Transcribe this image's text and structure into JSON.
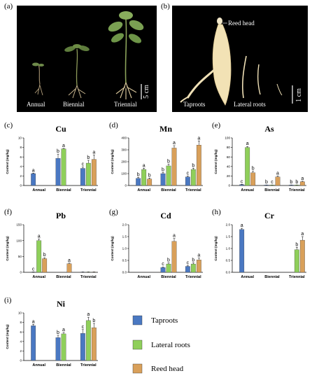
{
  "photo_a": {
    "panel_label": "(a)",
    "labels": {
      "annual": "Annual",
      "biennial": "Biennial",
      "triennial": "Triennial"
    },
    "scale": "5 cm"
  },
  "photo_b": {
    "panel_label": "(b)",
    "labels": {
      "reed_head": "Reed head",
      "taproots": "Taproots",
      "lateral_roots": "Lateral roots"
    },
    "scale": "1 cm"
  },
  "legend": [
    {
      "name": "Taproots",
      "color": "#4a78c2"
    },
    {
      "name": "Lateral roots",
      "color": "#8fcf5a"
    },
    {
      "name": "Reed head",
      "color": "#d9a05a"
    }
  ],
  "y_axis_label": "Content (mg/kg)",
  "chart_data": [
    {
      "panel": "(c)",
      "title": "Cu",
      "type": "bar",
      "categories": [
        "Annual",
        "Biennial",
        "Triennial"
      ],
      "ylim": [
        0,
        10
      ],
      "yticks": [
        0,
        2,
        4,
        6,
        8,
        10
      ],
      "series": [
        {
          "name": "Taproots",
          "values": [
            2.5,
            5.7,
            3.6
          ],
          "errors": [
            0.1,
            0.9,
            0.3
          ],
          "sig": [
            "a",
            "b",
            "c"
          ]
        },
        {
          "name": "Lateral roots",
          "values": [
            0,
            7.7,
            4.7
          ],
          "errors": [
            0,
            0.1,
            0.6
          ],
          "sig": [
            "",
            "a",
            "b"
          ]
        },
        {
          "name": "Reed head",
          "values": [
            0,
            0,
            5.5
          ],
          "errors": [
            0,
            0,
            0.9
          ],
          "sig": [
            "",
            "",
            "a"
          ]
        }
      ]
    },
    {
      "panel": "(d)",
      "title": "Mn",
      "type": "bar",
      "categories": [
        "Annual",
        "Biennial",
        "Triennial"
      ],
      "ylim": [
        0,
        400
      ],
      "yticks": [
        0,
        100,
        200,
        300,
        400
      ],
      "series": [
        {
          "name": "Taproots",
          "values": [
            60,
            100,
            72
          ],
          "errors": [
            8,
            10,
            8
          ],
          "sig": [
            "b",
            "b",
            "c"
          ]
        },
        {
          "name": "Lateral roots",
          "values": [
            135,
            165,
            135
          ],
          "errors": [
            10,
            15,
            10
          ],
          "sig": [
            "a",
            "b",
            "b"
          ]
        },
        {
          "name": "Reed head",
          "values": [
            55,
            315,
            340
          ],
          "errors": [
            8,
            20,
            35
          ],
          "sig": [
            "b",
            "a",
            "a"
          ]
        }
      ]
    },
    {
      "panel": "(e)",
      "title": "As",
      "type": "bar",
      "categories": [
        "Annual",
        "Biennial",
        "Triennial"
      ],
      "ylim": [
        0,
        100
      ],
      "yticks": [
        0,
        20,
        40,
        60,
        80,
        100
      ],
      "series": [
        {
          "name": "Taproots",
          "values": [
            2,
            1,
            1
          ],
          "errors": [
            0.5,
            0.3,
            0.3
          ],
          "sig": [
            "c",
            "b",
            "b"
          ]
        },
        {
          "name": "Lateral roots",
          "values": [
            80,
            1,
            1
          ],
          "errors": [
            2,
            0.3,
            0.3
          ],
          "sig": [
            "a",
            "c",
            "b"
          ]
        },
        {
          "name": "Reed head",
          "values": [
            27,
            18,
            8
          ],
          "errors": [
            3,
            2,
            1
          ],
          "sig": [
            "b",
            "a",
            "a"
          ]
        }
      ]
    },
    {
      "panel": "(f)",
      "title": "Pb",
      "type": "bar",
      "categories": [
        "Annual",
        "Biennial",
        "Triennial"
      ],
      "ylim": [
        0,
        150
      ],
      "yticks": [
        0,
        50,
        100,
        150
      ],
      "series": [
        {
          "name": "Taproots",
          "values": [
            1,
            0,
            1
          ],
          "errors": [
            0.2,
            0,
            0.2
          ],
          "sig": [
            "c",
            "",
            ""
          ]
        },
        {
          "name": "Lateral roots",
          "values": [
            100,
            0,
            1
          ],
          "errors": [
            5,
            0,
            0.2
          ],
          "sig": [
            "a",
            "",
            ""
          ]
        },
        {
          "name": "Reed head",
          "values": [
            43,
            27,
            1
          ],
          "errors": [
            3,
            2,
            0.2
          ],
          "sig": [
            "b",
            "a",
            ""
          ]
        }
      ]
    },
    {
      "panel": "(g)",
      "title": "Cd",
      "type": "bar",
      "categories": [
        "Annual",
        "Biennial",
        "Triennial"
      ],
      "ylim": [
        0,
        2.0
      ],
      "yticks": [
        0.0,
        0.5,
        1.0,
        1.5,
        2.0
      ],
      "series": [
        {
          "name": "Taproots",
          "values": [
            0,
            0.2,
            0.25
          ],
          "errors": [
            0,
            0.03,
            0.03
          ],
          "sig": [
            "",
            "c",
            "c"
          ]
        },
        {
          "name": "Lateral roots",
          "values": [
            0,
            0.35,
            0.35
          ],
          "errors": [
            0,
            0.05,
            0.05
          ],
          "sig": [
            "",
            "b",
            "b"
          ]
        },
        {
          "name": "Reed head",
          "values": [
            0,
            1.3,
            0.52
          ],
          "errors": [
            0,
            0.12,
            0.08
          ],
          "sig": [
            "",
            "a",
            "a"
          ]
        }
      ]
    },
    {
      "panel": "(h)",
      "title": "Cr",
      "type": "bar",
      "categories": [
        "Annual",
        "Biennial",
        "Triennial"
      ],
      "ylim": [
        0,
        2.0
      ],
      "yticks": [
        0.0,
        0.5,
        1.0,
        1.5,
        2.0
      ],
      "series": [
        {
          "name": "Taproots",
          "values": [
            1.8,
            0,
            0
          ],
          "errors": [
            0.05,
            0,
            0
          ],
          "sig": [
            "a",
            "",
            ""
          ]
        },
        {
          "name": "Lateral roots",
          "values": [
            0,
            0,
            0.95
          ],
          "errors": [
            0,
            0,
            0.1
          ],
          "sig": [
            "",
            "",
            "b"
          ]
        },
        {
          "name": "Reed head",
          "values": [
            0,
            0,
            1.35
          ],
          "errors": [
            0,
            0,
            0.15
          ],
          "sig": [
            "",
            "",
            "a"
          ]
        }
      ]
    },
    {
      "panel": "(i)",
      "title": "Ni",
      "type": "bar",
      "categories": [
        "Annual",
        "Biennial",
        "Triennial"
      ],
      "ylim": [
        0,
        10
      ],
      "yticks": [
        0,
        2,
        4,
        6,
        8,
        10
      ],
      "series": [
        {
          "name": "Taproots",
          "values": [
            7.3,
            4.8,
            5.7
          ],
          "errors": [
            0.3,
            0.5,
            0.8
          ],
          "sig": [
            "a",
            "b",
            "c"
          ]
        },
        {
          "name": "Lateral roots",
          "values": [
            0,
            5.6,
            8.4
          ],
          "errors": [
            0,
            0.3,
            0.7
          ],
          "sig": [
            "",
            "a",
            "a"
          ]
        },
        {
          "name": "Reed head",
          "values": [
            0,
            0,
            6.9
          ],
          "errors": [
            0,
            0,
            0.9
          ],
          "sig": [
            "",
            "",
            "b"
          ]
        }
      ]
    }
  ]
}
